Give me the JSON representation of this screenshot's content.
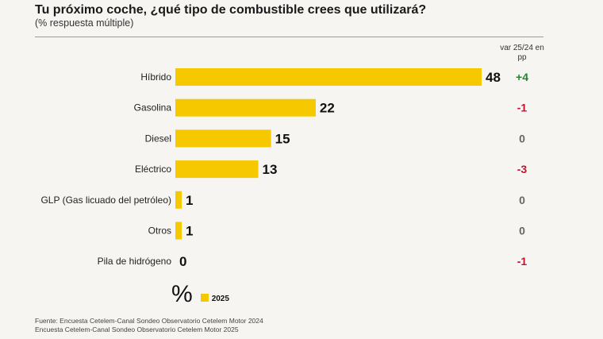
{
  "chart_data": {
    "type": "bar",
    "orientation": "horizontal",
    "title": "Tu próximo coche, ¿qué tipo de combustible crees que utilizará?",
    "subtitle": "(% respuesta múltiple)",
    "categories": [
      "Híbrido",
      "Gasolina",
      "Diesel",
      "Eléctrico",
      "GLP (Gas licuado del petróleo)",
      "Otros",
      "Pila de hidrógeno"
    ],
    "series": [
      {
        "name": "2025",
        "values": [
          48,
          22,
          15,
          13,
          1,
          1,
          0
        ],
        "color": "#f5c800"
      }
    ],
    "variation_header": "var 25/24 en pp",
    "variation": [
      "+4",
      "-1",
      "0",
      "-3",
      "0",
      "0",
      "-1"
    ],
    "variation_colors": {
      "positive": "#1e8a2e",
      "negative": "#c8102e",
      "neutral": "#666666"
    },
    "xlim": [
      0,
      48
    ],
    "unit_symbol": "%",
    "legend": {
      "label": "2025",
      "placement": "bottom-left"
    }
  },
  "source": {
    "line1": "Fuente: Encuesta Cetelem-Canal Sondeo Observatorio Cetelem Motor 2024",
    "line2": "Encuesta Cetelem-Canal Sondeo Observatorio Cetelem Motor 2025"
  }
}
